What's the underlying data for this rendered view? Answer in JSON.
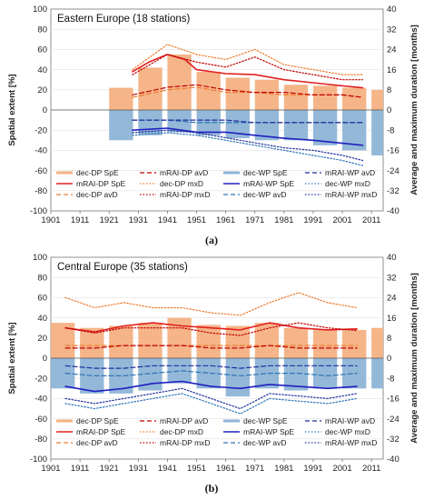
{
  "chart_data": [
    {
      "type": "bar",
      "title": "Eastern Europe (18 stations)",
      "caption": "(a)",
      "ylabel_left": "Spatial extent [%]",
      "ylabel_right": "Average and maximum duration [months]",
      "xlim": [
        1901,
        2015
      ],
      "ylim_left": [
        -100,
        100
      ],
      "ylim_right": [
        -40,
        40
      ],
      "xticks": [
        1901,
        1911,
        1921,
        1931,
        1941,
        1951,
        1961,
        1971,
        1981,
        1991,
        2001,
        2011
      ],
      "yticks_left": [
        -100,
        -80,
        -60,
        -40,
        -20,
        0,
        20,
        40,
        60,
        80,
        100
      ],
      "yticks_right": [
        -40,
        -32,
        -24,
        -16,
        -8,
        0,
        8,
        16,
        24,
        32,
        40
      ],
      "series": [
        {
          "name": "dec-DP SpE",
          "color": "#f4b183",
          "kind": "bar",
          "axis": "left",
          "x": [
            1921,
            1931,
            1941,
            1951,
            1961,
            1971,
            1981,
            1991,
            2001,
            2011
          ],
          "values": [
            22,
            42,
            55,
            38,
            32,
            30,
            25,
            24,
            22,
            20
          ]
        },
        {
          "name": "mRAI-DP SpE",
          "color": "#e02020",
          "kind": "line",
          "axis": "left",
          "x": [
            1929,
            1935,
            1941,
            1947,
            1951,
            1961,
            1971,
            1981,
            1991,
            2001,
            2008
          ],
          "values": [
            38,
            48,
            55,
            50,
            40,
            36,
            35,
            30,
            27,
            24,
            22
          ]
        },
        {
          "name": "dec-DP avD",
          "color": "#ed7d31",
          "kind": "dashed",
          "axis": "right",
          "x": [
            1929,
            1941,
            1951,
            1961,
            1971,
            1981,
            1991,
            2001,
            2008
          ],
          "values": [
            5,
            8,
            9,
            7,
            7,
            6,
            6,
            6,
            5
          ]
        },
        {
          "name": "mRAI-DP avD",
          "color": "#c00000",
          "kind": "dashed",
          "axis": "right",
          "x": [
            1929,
            1941,
            1951,
            1961,
            1971,
            1981,
            1991,
            2001,
            2008
          ],
          "values": [
            6,
            9,
            10,
            8,
            7,
            7,
            6,
            6,
            5
          ]
        },
        {
          "name": "dec-DP mxD",
          "color": "#ed7d31",
          "kind": "dotted",
          "axis": "right",
          "x": [
            1929,
            1941,
            1951,
            1961,
            1971,
            1981,
            1991,
            2001,
            2008
          ],
          "values": [
            16,
            26,
            22,
            20,
            24,
            18,
            16,
            14,
            14
          ]
        },
        {
          "name": "mRAI-DP mxD",
          "color": "#c00000",
          "kind": "dotted",
          "axis": "right",
          "x": [
            1929,
            1941,
            1951,
            1961,
            1971,
            1981,
            1991,
            2001,
            2008
          ],
          "values": [
            14,
            22,
            19,
            17,
            21,
            16,
            14,
            12,
            12
          ]
        },
        {
          "name": "dec-WP SpE",
          "color": "#8eb4d6",
          "kind": "bar",
          "axis": "left",
          "x": [
            1921,
            1931,
            1941,
            1951,
            1961,
            1971,
            1981,
            1991,
            2001,
            2011
          ],
          "values": [
            -30,
            -25,
            -22,
            -25,
            -28,
            -30,
            -30,
            -35,
            -40,
            -45
          ]
        },
        {
          "name": "mRAI-WP SpE",
          "color": "#2020c0",
          "kind": "line",
          "axis": "left",
          "x": [
            1929,
            1941,
            1951,
            1961,
            1971,
            1981,
            1991,
            2001,
            2008
          ],
          "values": [
            -20,
            -18,
            -22,
            -22,
            -25,
            -28,
            -30,
            -33,
            -35
          ]
        },
        {
          "name": "dec-WP avD",
          "color": "#2e75b6",
          "kind": "dashed",
          "axis": "right",
          "x": [
            1929,
            1941,
            1951,
            1961,
            1971,
            1981,
            1991,
            2001,
            2008
          ],
          "values": [
            -4,
            -4,
            -5,
            -5,
            -5,
            -5,
            -5,
            -5,
            -5
          ]
        },
        {
          "name": "mRAI-WP avD",
          "color": "#1f2e9c",
          "kind": "dashed",
          "axis": "right",
          "x": [
            1929,
            1941,
            1951,
            1961,
            1971,
            1981,
            1991,
            2001,
            2008
          ],
          "values": [
            -4,
            -4,
            -4,
            -4,
            -5,
            -5,
            -5,
            -5,
            -5
          ]
        },
        {
          "name": "dec-WP mxD",
          "color": "#2e75b6",
          "kind": "dotted",
          "axis": "right",
          "x": [
            1929,
            1941,
            1951,
            1961,
            1971,
            1981,
            1991,
            2001,
            2008
          ],
          "values": [
            -10,
            -9,
            -10,
            -12,
            -14,
            -16,
            -18,
            -20,
            -22
          ]
        },
        {
          "name": "mRAI-WP mxD",
          "color": "#1f2e9c",
          "kind": "dotted",
          "axis": "right",
          "x": [
            1929,
            1941,
            1951,
            1961,
            1971,
            1981,
            1991,
            2001,
            2008
          ],
          "values": [
            -9,
            -8,
            -9,
            -11,
            -13,
            -15,
            -16,
            -18,
            -20
          ]
        }
      ]
    },
    {
      "type": "bar",
      "title": "Central Europe (35 stations)",
      "caption": "(b)",
      "ylabel_left": "Spatial extent [%]",
      "ylabel_right": "Average and maximum duration [months]",
      "xlim": [
        1901,
        2015
      ],
      "ylim_left": [
        -100,
        100
      ],
      "ylim_right": [
        -40,
        40
      ],
      "xticks": [
        1901,
        1911,
        1921,
        1931,
        1941,
        1951,
        1961,
        1971,
        1981,
        1991,
        2001,
        2011
      ],
      "yticks_left": [
        -100,
        -80,
        -60,
        -40,
        -20,
        0,
        20,
        40,
        60,
        80,
        100
      ],
      "yticks_right": [
        -40,
        -32,
        -24,
        -16,
        -8,
        0,
        8,
        16,
        24,
        32,
        40
      ],
      "series": [
        {
          "name": "dec-DP SpE",
          "color": "#f4b183",
          "kind": "bar",
          "axis": "left",
          "x": [
            1901,
            1911,
            1921,
            1931,
            1941,
            1951,
            1961,
            1971,
            1981,
            1991,
            2001,
            2011
          ],
          "values": [
            35,
            30,
            32,
            35,
            40,
            33,
            32,
            35,
            30,
            28,
            28,
            30
          ]
        },
        {
          "name": "mRAI-DP SpE",
          "color": "#e02020",
          "kind": "line",
          "axis": "left",
          "x": [
            1906,
            1916,
            1926,
            1936,
            1946,
            1956,
            1966,
            1976,
            1986,
            1996,
            2006
          ],
          "values": [
            30,
            26,
            32,
            35,
            32,
            30,
            28,
            35,
            30,
            28,
            29
          ]
        },
        {
          "name": "dec-DP avD",
          "color": "#ed7d31",
          "kind": "dashed",
          "axis": "right",
          "x": [
            1906,
            1916,
            1926,
            1936,
            1946,
            1956,
            1966,
            1976,
            1986,
            1996,
            2006
          ],
          "values": [
            5,
            5,
            5,
            5,
            5,
            5,
            5,
            5,
            5,
            5,
            5
          ]
        },
        {
          "name": "mRAI-DP avD",
          "color": "#c00000",
          "kind": "dashed",
          "axis": "right",
          "x": [
            1906,
            1916,
            1926,
            1936,
            1946,
            1956,
            1966,
            1976,
            1986,
            1996,
            2006
          ],
          "values": [
            4,
            4,
            5,
            5,
            5,
            4,
            4,
            5,
            4,
            4,
            4
          ]
        },
        {
          "name": "dec-DP mxD",
          "color": "#ed7d31",
          "kind": "dotted",
          "axis": "right",
          "x": [
            1906,
            1916,
            1926,
            1936,
            1946,
            1956,
            1966,
            1976,
            1986,
            1996,
            2006
          ],
          "values": [
            24,
            20,
            22,
            20,
            20,
            18,
            17,
            22,
            26,
            22,
            20
          ]
        },
        {
          "name": "mRAI-DP mxD",
          "color": "#c00000",
          "kind": "dotted",
          "axis": "right",
          "x": [
            1906,
            1916,
            1926,
            1936,
            1946,
            1956,
            1966,
            1976,
            1986,
            1996,
            2006
          ],
          "values": [
            12,
            10,
            12,
            12,
            12,
            10,
            9,
            12,
            14,
            12,
            11
          ]
        },
        {
          "name": "dec-WP SpE",
          "color": "#8eb4d6",
          "kind": "bar",
          "axis": "left",
          "x": [
            1901,
            1911,
            1921,
            1931,
            1941,
            1951,
            1961,
            1971,
            1981,
            1991,
            2001,
            2011
          ],
          "values": [
            -30,
            -35,
            -35,
            -32,
            -25,
            -30,
            -38,
            -30,
            -32,
            -30,
            -30,
            -30
          ]
        },
        {
          "name": "mRAI-WP SpE",
          "color": "#2020c0",
          "kind": "line",
          "axis": "left",
          "x": [
            1906,
            1916,
            1926,
            1936,
            1946,
            1956,
            1966,
            1976,
            1986,
            1996,
            2006
          ],
          "values": [
            -28,
            -33,
            -30,
            -25,
            -23,
            -28,
            -30,
            -26,
            -28,
            -30,
            -28
          ]
        },
        {
          "name": "dec-WP avD",
          "color": "#2e75b6",
          "kind": "dashed",
          "axis": "right",
          "x": [
            1906,
            1916,
            1926,
            1936,
            1946,
            1956,
            1966,
            1976,
            1986,
            1996,
            2006
          ],
          "values": [
            -6,
            -7,
            -7,
            -6,
            -5,
            -6,
            -7,
            -6,
            -6,
            -7,
            -6
          ]
        },
        {
          "name": "mRAI-WP avD",
          "color": "#1f2e9c",
          "kind": "dashed",
          "axis": "right",
          "x": [
            1906,
            1916,
            1926,
            1936,
            1946,
            1956,
            1966,
            1976,
            1986,
            1996,
            2006
          ],
          "values": [
            -3,
            -4,
            -4,
            -3,
            -3,
            -3,
            -4,
            -3,
            -3,
            -3,
            -3
          ]
        },
        {
          "name": "dec-WP mxD",
          "color": "#2e75b6",
          "kind": "dotted",
          "axis": "right",
          "x": [
            1906,
            1916,
            1926,
            1936,
            1946,
            1956,
            1966,
            1976,
            1986,
            1996,
            2006
          ],
          "values": [
            -18,
            -20,
            -18,
            -16,
            -14,
            -18,
            -22,
            -16,
            -17,
            -18,
            -16
          ]
        },
        {
          "name": "mRAI-WP mxD",
          "color": "#1f2e9c",
          "kind": "dotted",
          "axis": "right",
          "x": [
            1906,
            1916,
            1926,
            1936,
            1946,
            1956,
            1966,
            1976,
            1986,
            1996,
            2006
          ],
          "values": [
            -16,
            -18,
            -16,
            -14,
            -12,
            -16,
            -20,
            -14,
            -15,
            -16,
            -14
          ]
        }
      ]
    }
  ]
}
